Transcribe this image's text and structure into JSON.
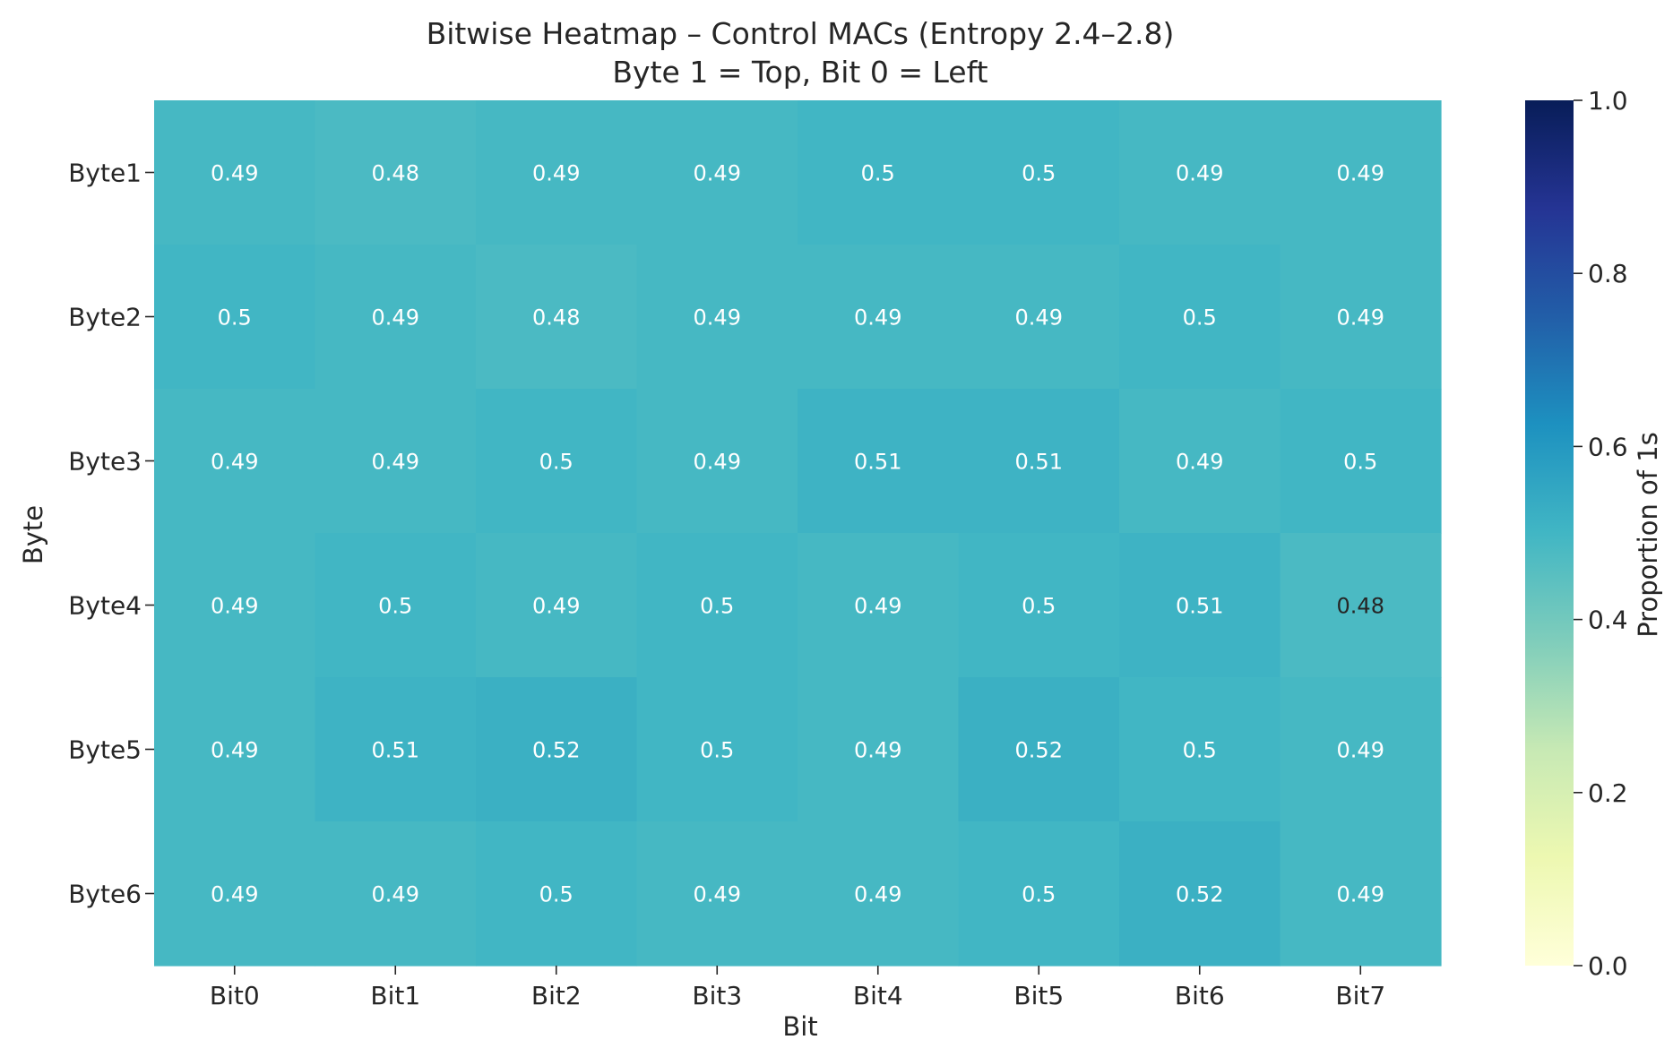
{
  "chart_data": {
    "type": "heatmap",
    "title": "Bitwise Heatmap – Control MACs (Entropy 2.4–2.8)",
    "subtitle": "Byte 1 = Top, Bit 0 = Left",
    "xlabel": "Bit",
    "ylabel": "Byte",
    "x_categories": [
      "Bit0",
      "Bit1",
      "Bit2",
      "Bit3",
      "Bit4",
      "Bit5",
      "Bit6",
      "Bit7"
    ],
    "y_categories": [
      "Byte1",
      "Byte2",
      "Byte3",
      "Byte4",
      "Byte5",
      "Byte6"
    ],
    "values": [
      [
        0.49,
        0.48,
        0.49,
        0.49,
        0.5,
        0.5,
        0.49,
        0.49
      ],
      [
        0.5,
        0.49,
        0.48,
        0.49,
        0.49,
        0.49,
        0.5,
        0.49
      ],
      [
        0.49,
        0.49,
        0.5,
        0.49,
        0.51,
        0.51,
        0.49,
        0.5
      ],
      [
        0.49,
        0.5,
        0.49,
        0.5,
        0.49,
        0.5,
        0.51,
        0.48
      ],
      [
        0.49,
        0.51,
        0.52,
        0.5,
        0.49,
        0.52,
        0.5,
        0.49
      ],
      [
        0.49,
        0.49,
        0.5,
        0.49,
        0.49,
        0.5,
        0.52,
        0.49
      ]
    ],
    "colormap": "YlGnBu",
    "colorbar": {
      "label": "Proportion of 1s",
      "range": [
        0.0,
        1.0
      ],
      "ticks": [
        "0.0",
        "0.2",
        "0.4",
        "0.6",
        "0.8",
        "1.0"
      ]
    },
    "annotations": true
  }
}
